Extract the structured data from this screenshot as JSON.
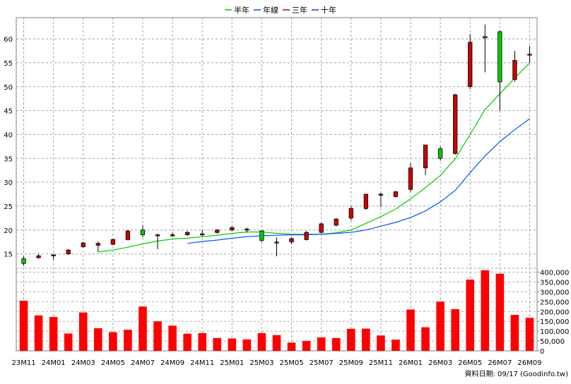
{
  "chart_data": [
    {
      "type": "candlestick",
      "legend": [
        {
          "name": "半年",
          "color": "#00cc00"
        },
        {
          "name": "年線",
          "color": "#0055ff"
        },
        {
          "name": "三年",
          "color": "#cc0000"
        },
        {
          "name": "十年",
          "color": "#3333cc"
        }
      ],
      "y_ticks": [
        15,
        20,
        25,
        30,
        35,
        40,
        45,
        50,
        55,
        60
      ],
      "ylim": [
        12,
        64
      ],
      "up_color": "#cc0000",
      "down_color": "#00cc00",
      "x_labels": [
        "23M11",
        "24M01",
        "24M03",
        "24M05",
        "24M07",
        "24M09",
        "24M11",
        "25M01",
        "25M03",
        "25M05",
        "25M07",
        "25M09",
        "25M11",
        "26M01",
        "26M03",
        "26M05",
        "26M07",
        "26M09"
      ],
      "candles": [
        {
          "o": 14,
          "h": 14.5,
          "l": 12.5,
          "c": 13
        },
        {
          "o": 14.2,
          "h": 15,
          "l": 14,
          "c": 14.6
        },
        {
          "o": 14.8,
          "h": 15,
          "l": 13.8,
          "c": 14.8
        },
        {
          "o": 15,
          "h": 16,
          "l": 14.8,
          "c": 15.8
        },
        {
          "o": 16.5,
          "h": 17.5,
          "l": 16.3,
          "c": 17.3
        },
        {
          "o": 16.8,
          "h": 17.6,
          "l": 15.5,
          "c": 17.2
        },
        {
          "o": 17,
          "h": 18.2,
          "l": 16.8,
          "c": 18
        },
        {
          "o": 18,
          "h": 20,
          "l": 17.8,
          "c": 19.8
        },
        {
          "o": 20,
          "h": 21,
          "l": 18.5,
          "c": 19
        },
        {
          "o": 19,
          "h": 19.2,
          "l": 16,
          "c": 19
        },
        {
          "o": 19,
          "h": 19.5,
          "l": 18.5,
          "c": 19
        },
        {
          "o": 19,
          "h": 19.8,
          "l": 18.8,
          "c": 19.5
        },
        {
          "o": 19,
          "h": 20,
          "l": 18.7,
          "c": 19.2
        },
        {
          "o": 19.5,
          "h": 20.2,
          "l": 19.2,
          "c": 20
        },
        {
          "o": 20,
          "h": 20.8,
          "l": 19.8,
          "c": 20.5
        },
        {
          "o": 20,
          "h": 20.5,
          "l": 19.5,
          "c": 20.2
        },
        {
          "o": 19.8,
          "h": 20,
          "l": 17.5,
          "c": 17.8
        },
        {
          "o": 17.5,
          "h": 18.5,
          "l": 14.5,
          "c": 17.5
        },
        {
          "o": 17.5,
          "h": 18.5,
          "l": 17,
          "c": 18.2
        },
        {
          "o": 18,
          "h": 19.8,
          "l": 17.8,
          "c": 19.5
        },
        {
          "o": 19.5,
          "h": 21.5,
          "l": 19.3,
          "c": 21.3
        },
        {
          "o": 21,
          "h": 22.5,
          "l": 20.8,
          "c": 22.3
        },
        {
          "o": 22.5,
          "h": 25,
          "l": 22,
          "c": 24.5
        },
        {
          "o": 24.5,
          "h": 27.5,
          "l": 24.2,
          "c": 27.5
        },
        {
          "o": 27.3,
          "h": 27.8,
          "l": 24.8,
          "c": 27.5
        },
        {
          "o": 27,
          "h": 28.2,
          "l": 26.8,
          "c": 28
        },
        {
          "o": 28.5,
          "h": 34,
          "l": 28,
          "c": 33
        },
        {
          "o": 33,
          "h": 37.8,
          "l": 31.5,
          "c": 37.8
        },
        {
          "o": 37,
          "h": 37.5,
          "l": 34.5,
          "c": 35
        },
        {
          "o": 36,
          "h": 48.5,
          "l": 35.8,
          "c": 48.3
        },
        {
          "o": 50,
          "h": 61,
          "l": 49.5,
          "c": 59.3
        },
        {
          "o": 60.5,
          "h": 63,
          "l": 53,
          "c": 60.2
        },
        {
          "o": 61.5,
          "h": 61.8,
          "l": 45,
          "c": 51
        },
        {
          "o": 51.5,
          "h": 57.5,
          "l": 51,
          "c": 55.5
        },
        {
          "o": 56.8,
          "h": 58.5,
          "l": 55,
          "c": 56.8
        }
      ],
      "ma_half_year": [
        null,
        null,
        null,
        null,
        null,
        15.4,
        15.8,
        16.4,
        17.1,
        17.7,
        18.1,
        18.3,
        18.6,
        18.9,
        19.3,
        19.6,
        19.6,
        19.3,
        19.1,
        19.1,
        19.1,
        19.4,
        20,
        21.4,
        22.8,
        24.4,
        26.5,
        28.9,
        31.4,
        34.9,
        40,
        45.2,
        48.5,
        51.8,
        55
      ],
      "ma_year": [
        null,
        null,
        null,
        null,
        null,
        null,
        null,
        null,
        null,
        null,
        null,
        17.2,
        17.6,
        17.9,
        18.3,
        18.6,
        18.8,
        18.9,
        19,
        19,
        19.1,
        19.3,
        19.5,
        20,
        20.8,
        21.6,
        22.6,
        24,
        25.9,
        28.3,
        32,
        35.5,
        38.5,
        41,
        43.3
      ],
      "volume_ticks": [
        0,
        50000,
        100000,
        150000,
        200000,
        250000,
        300000,
        350000,
        400000
      ],
      "volume_tick_labels": [
        "0",
        "50,000",
        "100,000",
        "150,000",
        "200,000",
        "250,000",
        "300,000",
        "350,000",
        "400,000"
      ],
      "volume_ylim": [
        0,
        420000
      ],
      "volumes": [
        255000,
        180000,
        172000,
        88000,
        195000,
        115000,
        95000,
        107000,
        225000,
        150000,
        128000,
        87000,
        90000,
        65000,
        63000,
        58000,
        90000,
        80000,
        42000,
        50000,
        68000,
        65000,
        112000,
        113000,
        78000,
        57000,
        210000,
        120000,
        250000,
        212000,
        362000,
        410000,
        392000,
        183000,
        168000
      ],
      "volume_color": "#ff0000"
    }
  ],
  "footer": {
    "source_text": "資料日期: 09/17  (Goodinfo.tw)"
  }
}
